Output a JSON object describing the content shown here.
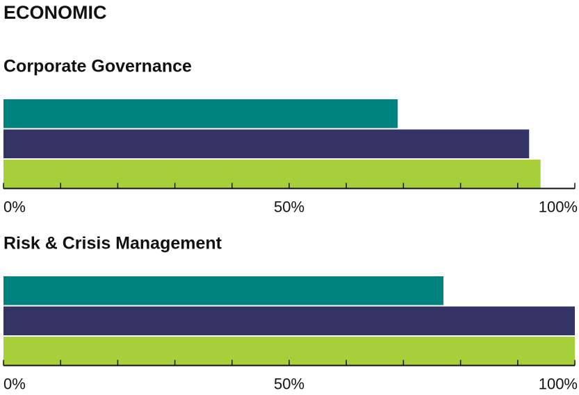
{
  "header": {
    "title": "ECONOMIC"
  },
  "chart_data": [
    {
      "type": "bar",
      "orientation": "horizontal",
      "title": "Corporate Governance",
      "values": [
        69,
        92,
        94
      ],
      "colors": [
        "#00827f",
        "#333366",
        "#a6cf3a"
      ],
      "xlim": [
        0,
        100
      ],
      "xticks": [
        {
          "value": 0,
          "label": "0%"
        },
        {
          "value": 50,
          "label": "50%"
        },
        {
          "value": 100,
          "label": "100%"
        }
      ],
      "minor_xticks": [
        10,
        20,
        30,
        40,
        60,
        70,
        80,
        90
      ]
    },
    {
      "type": "bar",
      "orientation": "horizontal",
      "title": "Risk & Crisis Management",
      "values": [
        77,
        100,
        100
      ],
      "colors": [
        "#00827f",
        "#333366",
        "#a6cf3a"
      ],
      "xlim": [
        0,
        100
      ],
      "xticks": [
        {
          "value": 0,
          "label": "0%"
        },
        {
          "value": 50,
          "label": "50%"
        },
        {
          "value": 100,
          "label": "100%"
        }
      ],
      "minor_xticks": [
        10,
        20,
        30,
        40,
        60,
        70,
        80,
        90
      ]
    }
  ]
}
